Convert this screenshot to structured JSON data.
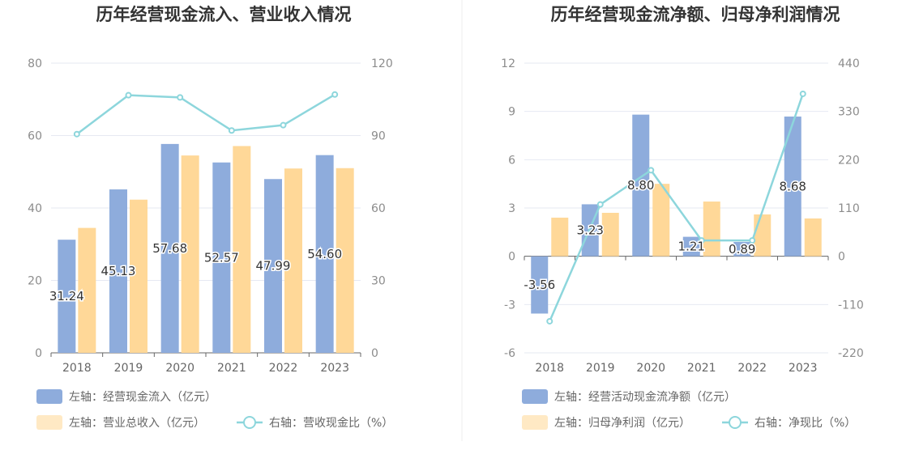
{
  "colors": {
    "bar_primary": "#8eacdc",
    "bar_secondary": "#ffd898",
    "line": "#8dd6dc",
    "grid": "#e6e9f2",
    "axis": "#666666",
    "divider": "#eeeeee"
  },
  "chart_data": [
    {
      "type": "bar+line",
      "title": "历年经营现金流入、营业收入情况",
      "categories": [
        "2018",
        "2019",
        "2020",
        "2021",
        "2022",
        "2023"
      ],
      "left_axis": {
        "range": [
          0,
          80
        ],
        "ticks": [
          "0",
          "20",
          "40",
          "60",
          "80"
        ]
      },
      "right_axis": {
        "range": [
          0,
          120
        ],
        "ticks": [
          "0",
          "30",
          "60",
          "90",
          "120"
        ]
      },
      "series": [
        {
          "name": "左轴：经营现金流入（亿元）",
          "type": "bar",
          "axis": "left",
          "values": [
            31.24,
            45.13,
            57.68,
            52.57,
            47.99,
            54.6
          ],
          "labels": [
            "31.24",
            "45.13",
            "57.68",
            "52.57",
            "47.99",
            "54.60"
          ]
        },
        {
          "name": "左轴：营业总收入（亿元）",
          "type": "bar",
          "axis": "left",
          "values": [
            34.5,
            42.3,
            54.5,
            57.1,
            50.9,
            51.0
          ]
        },
        {
          "name": "右轴：营收现金比（%）",
          "type": "line",
          "axis": "right",
          "values": [
            90.6,
            106.7,
            105.8,
            92.1,
            94.3,
            107.0
          ]
        }
      ]
    },
    {
      "type": "bar+line",
      "title": "历年经营现金流净额、归母净利润情况",
      "categories": [
        "2018",
        "2019",
        "2020",
        "2021",
        "2022",
        "2023"
      ],
      "left_axis": {
        "range": [
          -6,
          12
        ],
        "ticks": [
          "-6",
          "-3",
          "0",
          "3",
          "6",
          "9",
          "12"
        ]
      },
      "right_axis": {
        "range": [
          -220,
          440
        ],
        "ticks": [
          "-220",
          "-110",
          "0",
          "110",
          "220",
          "330",
          "440"
        ]
      },
      "series": [
        {
          "name": "左轴：经营活动现金流净额（亿元）",
          "type": "bar",
          "axis": "left",
          "values": [
            -3.56,
            3.23,
            8.8,
            1.21,
            0.89,
            8.68
          ],
          "labels": [
            "-3.56",
            "3.23",
            "8.80",
            "1.21",
            "0.89",
            "8.68"
          ]
        },
        {
          "name": "左轴：归母净利润（亿元）",
          "type": "bar",
          "axis": "left",
          "values": [
            2.4,
            2.7,
            4.5,
            3.4,
            2.6,
            2.35
          ]
        },
        {
          "name": "右轴：净现比（%）",
          "type": "line",
          "axis": "right",
          "values": [
            -148,
            118,
            196,
            36,
            36,
            370
          ]
        }
      ]
    }
  ]
}
